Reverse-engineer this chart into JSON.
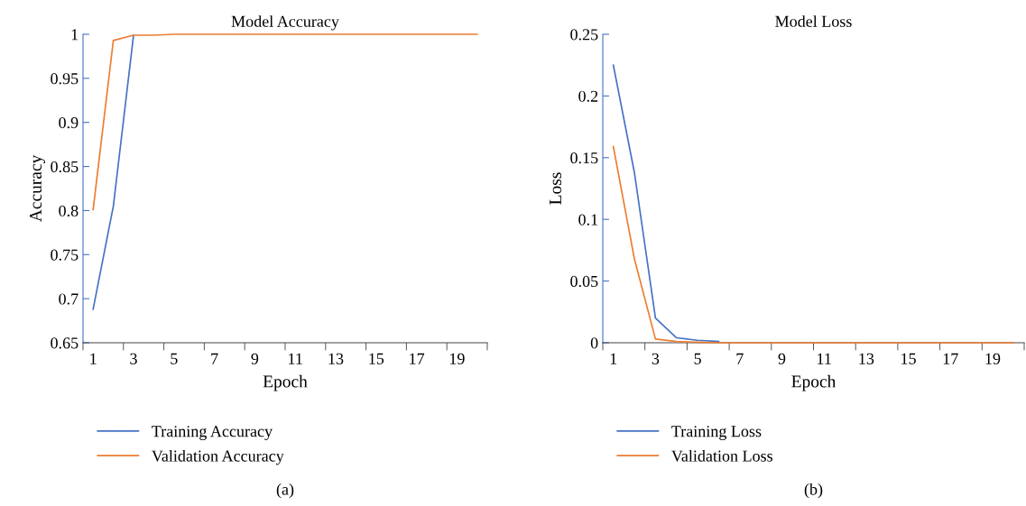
{
  "chart_data": [
    {
      "type": "line",
      "title": "Model Accuracy",
      "xlabel": "Epoch",
      "ylabel": "Accuracy",
      "categories": [
        "1",
        null,
        "3",
        null,
        "5",
        null,
        "7",
        null,
        "9",
        null,
        "11",
        null,
        "13",
        null,
        "15",
        null,
        "17",
        null,
        "19",
        null
      ],
      "series": [
        {
          "name": "Training Accuracy",
          "color": "#4472c4",
          "values": [
            0.688,
            0.805,
            0.999,
            null,
            null,
            null,
            null,
            null,
            null,
            null,
            null,
            null,
            null,
            null,
            null,
            null,
            null,
            null,
            null,
            null
          ]
        },
        {
          "name": "Validation Accuracy",
          "color": "#ed7d31",
          "values": [
            0.801,
            0.993,
            0.999,
            0.999,
            1.0,
            1.0,
            1.0,
            1.0,
            1.0,
            1.0,
            1.0,
            1.0,
            1.0,
            1.0,
            1.0,
            1.0,
            1.0,
            1.0,
            1.0,
            1.0
          ]
        }
      ],
      "ylim": [
        0.65,
        1
      ],
      "yticks": [
        0.65,
        0.7,
        0.75,
        0.8,
        0.85,
        0.9,
        0.95,
        1
      ],
      "grid": false,
      "legend": "bottom",
      "annotations": [
        "(a)"
      ]
    },
    {
      "type": "line",
      "title": "Model Loss",
      "xlabel": "Epoch",
      "ylabel": "Loss",
      "categories": [
        "1",
        null,
        "3",
        null,
        "5",
        null,
        "7",
        null,
        "9",
        null,
        "11",
        null,
        "13",
        null,
        "15",
        null,
        "17",
        null,
        "19",
        null
      ],
      "series": [
        {
          "name": "Training Loss",
          "color": "#4472c4",
          "values": [
            0.225,
            0.138,
            0.02,
            0.004,
            0.002,
            0.001,
            null,
            null,
            null,
            null,
            null,
            null,
            null,
            null,
            null,
            null,
            null,
            null,
            null,
            null
          ]
        },
        {
          "name": "Validation Loss",
          "color": "#ed7d31",
          "values": [
            0.159,
            0.068,
            0.003,
            0.001,
            0.0005,
            0.0,
            0.0,
            0.0,
            0.0,
            0.0,
            0.0,
            0.0,
            0.0,
            0.0,
            0.0,
            0.0,
            0.0,
            0.0,
            0.0,
            0.0
          ]
        }
      ],
      "ylim": [
        0,
        0.25
      ],
      "yticks": [
        0,
        0.05,
        0.1,
        0.15,
        0.2,
        0.25
      ],
      "grid": false,
      "legend": "bottom",
      "annotations": [
        "(b)"
      ]
    }
  ]
}
